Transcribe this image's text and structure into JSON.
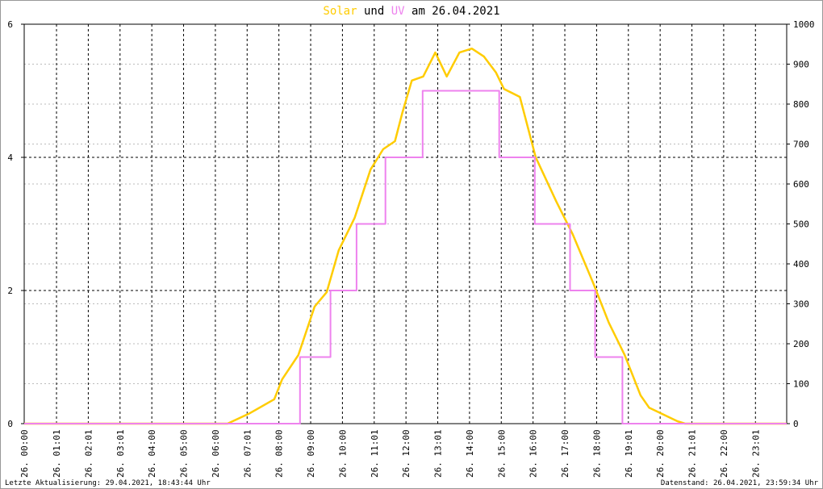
{
  "chart_data": {
    "type": "line",
    "title_middle": "und",
    "title_end": "am 26.04.2021",
    "footer_left": "Letzte Aktualisierung: 29.04.2021, 18:43:44 Uhr",
    "footer_right": "Datenstand: 26.04.2021, 23:59:34 Uhr",
    "xlim": [
      0,
      24
    ],
    "xticks": [
      {
        "value": 0,
        "label": "26. 00:00"
      },
      {
        "value": 1.0167,
        "label": "26. 01:01"
      },
      {
        "value": 2.0167,
        "label": "26. 02:01"
      },
      {
        "value": 3.0167,
        "label": "26. 03:01"
      },
      {
        "value": 4.0167,
        "label": "26. 04:00"
      },
      {
        "value": 5.0167,
        "label": "26. 05:00"
      },
      {
        "value": 6.0167,
        "label": "26. 06:00"
      },
      {
        "value": 7.0167,
        "label": "26. 07:01"
      },
      {
        "value": 8.0167,
        "label": "26. 08:00"
      },
      {
        "value": 9.0167,
        "label": "26. 09:00"
      },
      {
        "value": 10.0167,
        "label": "26. 10:00"
      },
      {
        "value": 11.0167,
        "label": "26. 11:01"
      },
      {
        "value": 12.0167,
        "label": "26. 12:00"
      },
      {
        "value": 13.0167,
        "label": "26. 13:01"
      },
      {
        "value": 14.0167,
        "label": "26. 14:00"
      },
      {
        "value": 15.0167,
        "label": "26. 15:00"
      },
      {
        "value": 16.0167,
        "label": "26. 16:00"
      },
      {
        "value": 17.0167,
        "label": "26. 17:00"
      },
      {
        "value": 18.0167,
        "label": "26. 18:00"
      },
      {
        "value": 19.0167,
        "label": "26. 19:01"
      },
      {
        "value": 20.0167,
        "label": "26. 20:00"
      },
      {
        "value": 21.0167,
        "label": "26. 21:01"
      },
      {
        "value": 22.0167,
        "label": "26. 22:00"
      },
      {
        "value": 23.0167,
        "label": "26. 23:01"
      }
    ],
    "ylim": [
      0,
      6
    ],
    "yticks": [
      0,
      2,
      4,
      6
    ],
    "y2lim": [
      0,
      1000
    ],
    "y2ticks": [
      0,
      100,
      200,
      300,
      400,
      500,
      600,
      700,
      800,
      900,
      1000
    ],
    "grid": true,
    "series": [
      {
        "name": "Solar",
        "color": "#ffcc00",
        "axis": "y2",
        "x": [
          0,
          6.4,
          7.1,
          7.87,
          8.12,
          8.63,
          9.14,
          9.52,
          9.9,
          10.4,
          10.9,
          11.3,
          11.67,
          11.9,
          12.2,
          12.56,
          12.94,
          13.3,
          13.7,
          14.09,
          14.47,
          14.85,
          15.1,
          15.6,
          16.1,
          16.75,
          17.26,
          17.9,
          18.4,
          18.9,
          19.4,
          19.67,
          20.56,
          20.8,
          24
        ],
        "values": [
          0,
          0,
          26,
          61,
          111,
          172,
          293,
          329,
          434,
          515,
          636,
          687,
          707,
          778,
          859,
          869,
          929,
          869,
          929,
          939,
          919,
          879,
          838,
          818,
          667,
          556,
          475,
          354,
          253,
          172,
          71,
          40,
          6,
          0,
          0
        ]
      },
      {
        "name": "UV",
        "color": "#ee82ee",
        "axis": "y",
        "x": [
          0,
          8.68,
          8.68,
          9.64,
          9.64,
          10.46,
          10.46,
          11.37,
          11.37,
          12.54,
          12.54,
          14.95,
          14.95,
          16.07,
          16.07,
          17.18,
          17.18,
          17.97,
          17.97,
          18.83,
          18.83,
          24
        ],
        "values": [
          0,
          0,
          1,
          1,
          2,
          2,
          3,
          3,
          4,
          4,
          5,
          5,
          4,
          4,
          3,
          3,
          2,
          2,
          1,
          1,
          0,
          0
        ]
      }
    ]
  }
}
